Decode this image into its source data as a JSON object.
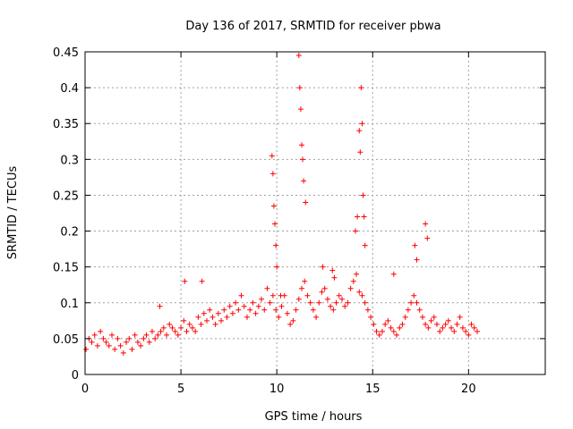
{
  "chart_data": {
    "type": "scatter",
    "title": "Day 136 of 2017, SRMTID for receiver pbwa",
    "xlabel": "GPS time / hours",
    "ylabel": "SRMTID / TECUs",
    "xlim": [
      0,
      24
    ],
    "ylim": [
      0,
      0.45
    ],
    "xticks": [
      0,
      5,
      10,
      15,
      20
    ],
    "xtick_labels": [
      "0",
      "5",
      "10",
      "15",
      "20"
    ],
    "yticks": [
      0,
      0.05,
      0.1,
      0.15,
      0.2,
      0.25,
      0.3,
      0.35,
      0.4,
      0.45
    ],
    "ytick_labels": [
      "0",
      "0.05",
      "0.1",
      "0.15",
      "0.2",
      "0.25",
      "0.3",
      "0.35",
      "0.4",
      "0.45"
    ],
    "grid": true,
    "marker": "+",
    "series": [
      {
        "name": "SRMTID",
        "color": "#ff0000",
        "x": [
          0.05,
          0.2,
          0.35,
          0.5,
          0.65,
          0.8,
          0.95,
          1.1,
          1.25,
          1.4,
          1.55,
          1.7,
          1.85,
          2.0,
          2.15,
          2.3,
          2.45,
          2.6,
          2.75,
          2.9,
          3.05,
          3.2,
          3.35,
          3.5,
          3.65,
          3.8,
          3.95,
          4.1,
          4.25,
          4.4,
          4.55,
          4.7,
          4.85,
          5.0,
          5.15,
          5.3,
          5.45,
          5.6,
          5.75,
          5.9,
          6.05,
          6.2,
          6.35,
          6.5,
          6.65,
          6.8,
          6.95,
          7.1,
          7.25,
          7.4,
          7.55,
          7.7,
          7.85,
          8.0,
          8.15,
          8.3,
          8.45,
          8.6,
          8.75,
          8.9,
          9.05,
          9.2,
          9.35,
          9.5,
          9.65,
          9.8,
          9.95,
          10.1,
          10.25,
          10.4,
          10.55,
          10.7,
          10.85,
          11.0,
          11.15,
          11.3,
          11.45,
          11.6,
          11.75,
          11.9,
          12.05,
          12.2,
          12.35,
          12.5,
          12.65,
          12.8,
          12.95,
          13.1,
          13.25,
          13.4,
          13.55,
          13.7,
          13.85,
          14.0,
          14.15,
          14.3,
          14.45,
          14.6,
          14.75,
          14.9,
          15.05,
          15.2,
          15.35,
          15.5,
          15.65,
          15.8,
          15.95,
          16.1,
          16.25,
          16.4,
          16.55,
          16.7,
          16.85,
          17.0,
          17.15,
          17.3,
          17.45,
          17.6,
          17.75,
          17.9,
          18.05,
          18.2,
          18.35,
          18.5,
          18.65,
          18.8,
          18.95,
          19.1,
          19.25,
          19.4,
          19.55,
          19.7,
          19.85,
          20.0,
          20.15,
          20.3,
          20.45,
          9.75,
          9.8,
          9.85,
          9.9,
          9.95,
          10.0,
          11.15,
          11.2,
          11.25,
          11.3,
          11.35,
          11.4,
          11.5,
          14.1,
          14.2,
          14.3,
          14.35,
          14.4,
          14.45,
          14.5,
          14.55,
          14.6,
          17.2,
          17.3,
          17.75,
          17.85,
          12.4,
          13.0,
          16.1,
          6.1,
          5.2,
          10.2,
          3.9,
          12.9
        ],
        "y": [
          0.035,
          0.05,
          0.045,
          0.055,
          0.04,
          0.06,
          0.05,
          0.045,
          0.04,
          0.055,
          0.035,
          0.05,
          0.04,
          0.03,
          0.045,
          0.05,
          0.035,
          0.055,
          0.045,
          0.04,
          0.05,
          0.055,
          0.045,
          0.06,
          0.05,
          0.055,
          0.06,
          0.065,
          0.055,
          0.07,
          0.065,
          0.06,
          0.055,
          0.065,
          0.075,
          0.06,
          0.07,
          0.065,
          0.06,
          0.08,
          0.07,
          0.085,
          0.075,
          0.09,
          0.08,
          0.07,
          0.085,
          0.075,
          0.09,
          0.08,
          0.095,
          0.085,
          0.1,
          0.09,
          0.11,
          0.095,
          0.08,
          0.09,
          0.1,
          0.085,
          0.095,
          0.105,
          0.09,
          0.12,
          0.1,
          0.11,
          0.09,
          0.08,
          0.095,
          0.11,
          0.085,
          0.07,
          0.075,
          0.09,
          0.105,
          0.12,
          0.13,
          0.11,
          0.1,
          0.09,
          0.08,
          0.1,
          0.115,
          0.12,
          0.105,
          0.095,
          0.09,
          0.1,
          0.11,
          0.105,
          0.095,
          0.1,
          0.12,
          0.13,
          0.14,
          0.115,
          0.11,
          0.1,
          0.09,
          0.08,
          0.07,
          0.06,
          0.055,
          0.06,
          0.07,
          0.075,
          0.065,
          0.06,
          0.055,
          0.065,
          0.07,
          0.08,
          0.09,
          0.1,
          0.11,
          0.1,
          0.09,
          0.08,
          0.07,
          0.065,
          0.075,
          0.08,
          0.07,
          0.06,
          0.065,
          0.07,
          0.075,
          0.065,
          0.06,
          0.07,
          0.08,
          0.065,
          0.06,
          0.055,
          0.07,
          0.065,
          0.06,
          0.305,
          0.28,
          0.235,
          0.21,
          0.18,
          0.15,
          0.445,
          0.4,
          0.37,
          0.32,
          0.3,
          0.27,
          0.24,
          0.2,
          0.22,
          0.34,
          0.31,
          0.4,
          0.35,
          0.25,
          0.22,
          0.18,
          0.18,
          0.16,
          0.21,
          0.19,
          0.15,
          0.135,
          0.14,
          0.13,
          0.13,
          0.11,
          0.095,
          0.145
        ]
      }
    ]
  }
}
